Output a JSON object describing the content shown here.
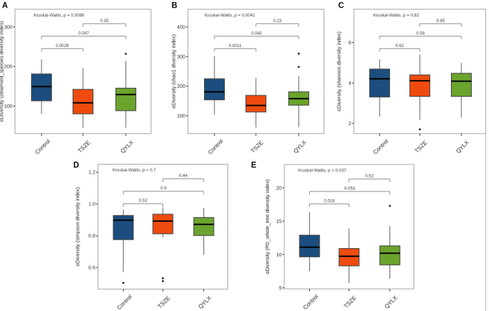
{
  "figure": {
    "groups": [
      "Control",
      "TSZE",
      "QYLX"
    ],
    "colors": {
      "Control": "#1B4D7E",
      "TSZE": "#EF4B0F",
      "QYLX": "#6BA42C"
    },
    "style": {
      "box_border": "#474747",
      "median_color": "#000000",
      "whisker_color": "#6a6a6a",
      "panel_border": "#a3a3a3",
      "bracket_color": "#8a8a8a",
      "text_color": "#3d3d3d",
      "outlier_color": "#1a1a1a"
    }
  },
  "chart_data": [
    {
      "type": "box",
      "panel_label": "A",
      "annotation": "Kruskal-Wallis, p = 0.0096",
      "ylabel": "αDiversity (observed_species diversity index)",
      "categories": [
        "Control",
        "TSZE",
        "QYLX"
      ],
      "yticks": [
        "100",
        "200",
        "300"
      ],
      "ylim": [
        30,
        345
      ],
      "boxes": [
        {
          "group": "Control",
          "whisker_low": 80,
          "q1": 113,
          "median": 149,
          "q3": 181,
          "whisker_high": 218,
          "outliers": []
        },
        {
          "group": "TSZE",
          "whisker_low": 45,
          "q1": 80,
          "median": 108,
          "q3": 142,
          "whisker_high": 196,
          "outliers": []
        },
        {
          "group": "QYLX",
          "whisker_low": 45,
          "q1": 88,
          "median": 129,
          "q3": 145,
          "whisker_high": 214,
          "outliers": [
            232
          ]
        }
      ],
      "comparisons": [
        {
          "a": "Control",
          "b": "TSZE",
          "p": "0.0028"
        },
        {
          "a": "Control",
          "b": "QYLX",
          "p": "0.047"
        },
        {
          "a": "TSZE",
          "b": "QYLX",
          "p": "0.35"
        }
      ]
    },
    {
      "type": "box",
      "panel_label": "B",
      "annotation": "Kruskal-Wallis, p = 0.0041",
      "ylabel": "αDiversity (chao1 diversity index)",
      "categories": [
        "Control",
        "TSZE",
        "QYLX"
      ],
      "yticks": [
        "100",
        "200",
        "300",
        "400"
      ],
      "ylim": [
        40,
        460
      ],
      "boxes": [
        {
          "group": "Control",
          "whisker_low": 104,
          "q1": 154,
          "median": 181,
          "q3": 225,
          "whisker_high": 302,
          "outliers": []
        },
        {
          "group": "TSZE",
          "whisker_low": 61,
          "q1": 113,
          "median": 135,
          "q3": 169,
          "whisker_high": 228,
          "outliers": []
        },
        {
          "group": "QYLX",
          "whisker_low": 61,
          "q1": 136,
          "median": 158,
          "q3": 181,
          "whisker_high": 234,
          "outliers": [
            265,
            310
          ]
        }
      ],
      "comparisons": [
        {
          "a": "Control",
          "b": "TSZE",
          "p": "0.0011"
        },
        {
          "a": "Control",
          "b": "QYLX",
          "p": "0.042"
        },
        {
          "a": "TSZE",
          "b": "QYLX",
          "p": "0.23"
        }
      ]
    },
    {
      "type": "box",
      "panel_label": "C",
      "annotation": "Kruskal-Wallis, p = 0.82",
      "ylabel": "αDiversity (shannon diversity index)",
      "categories": [
        "Control",
        "TSZE",
        "QYLX"
      ],
      "yticks": [
        "2",
        "4",
        "6"
      ],
      "ylim": [
        1.5,
        7.65
      ],
      "boxes": [
        {
          "group": "Control",
          "whisker_low": 2.34,
          "q1": 3.31,
          "median": 4.21,
          "q3": 4.69,
          "whisker_high": 5.17,
          "outliers": []
        },
        {
          "group": "TSZE",
          "whisker_low": 2.17,
          "q1": 3.34,
          "median": 4.11,
          "q3": 4.4,
          "whisker_high": 5.41,
          "outliers": [
            1.71
          ]
        },
        {
          "group": "QYLX",
          "whisker_low": 2.29,
          "q1": 3.34,
          "median": 4.09,
          "q3": 4.48,
          "whisker_high": 5.01,
          "outliers": []
        }
      ],
      "comparisons": [
        {
          "a": "Control",
          "b": "TSZE",
          "p": "0.62"
        },
        {
          "a": "Control",
          "b": "QYLX",
          "p": "0.58"
        },
        {
          "a": "TSZE",
          "b": "QYLX",
          "p": "0.95"
        }
      ]
    },
    {
      "type": "box",
      "panel_label": "D",
      "annotation": "Kruskal-Wallis, p = 0.7",
      "ylabel": "αDiversity (simpson diversity index)",
      "categories": [
        "Control",
        "TSZE",
        "QYLX"
      ],
      "yticks": [
        "0.6",
        "0.8",
        "1.0",
        "1.2"
      ],
      "ylim": [
        0.465,
        1.25
      ],
      "boxes": [
        {
          "group": "Control",
          "whisker_low": 0.573,
          "q1": 0.776,
          "median": 0.898,
          "q3": 0.928,
          "whisker_high": 0.965,
          "outliers": [
            0.504
          ]
        },
        {
          "group": "TSZE",
          "whisker_low": 0.792,
          "q1": 0.813,
          "median": 0.893,
          "q3": 0.936,
          "whisker_high": 0.978,
          "outliers": [
            0.533,
            0.515
          ]
        },
        {
          "group": "QYLX",
          "whisker_low": 0.68,
          "q1": 0.802,
          "median": 0.872,
          "q3": 0.915,
          "whisker_high": 0.975,
          "outliers": []
        }
      ],
      "comparisons": [
        {
          "a": "Control",
          "b": "TSZE",
          "p": "0.52"
        },
        {
          "a": "Control",
          "b": "QYLX",
          "p": "0.9"
        },
        {
          "a": "TSZE",
          "b": "QYLX",
          "p": "0.44"
        }
      ]
    },
    {
      "type": "box",
      "panel_label": "E",
      "annotation": "Kruskal-Wallis, p = 0.037",
      "ylabel": "αDiversity (PD_whole_tree diversity index)",
      "categories": [
        "Control",
        "TSZE",
        "QYLX"
      ],
      "yticks": [
        "5",
        "10",
        "15",
        "20"
      ],
      "ylim": [
        4.85,
        23.5
      ],
      "boxes": [
        {
          "group": "Control",
          "whisker_low": 7.5,
          "q1": 9.65,
          "median": 11.1,
          "q3": 12.9,
          "whisker_high": 16.4,
          "outliers": []
        },
        {
          "group": "TSZE",
          "whisker_low": 5.7,
          "q1": 8.3,
          "median": 9.75,
          "q3": 10.9,
          "whisker_high": 13.9,
          "outliers": []
        },
        {
          "group": "QYLX",
          "whisker_low": 6.4,
          "q1": 8.45,
          "median": 10.2,
          "q3": 11.3,
          "whisker_high": 14.25,
          "outliers": [
            17.3
          ]
        }
      ],
      "comparisons": [
        {
          "a": "Control",
          "b": "TSZE",
          "p": "0.018"
        },
        {
          "a": "Control",
          "b": "QYLX",
          "p": "0.053"
        },
        {
          "a": "TSZE",
          "b": "QYLX",
          "p": "0.52"
        }
      ]
    }
  ]
}
